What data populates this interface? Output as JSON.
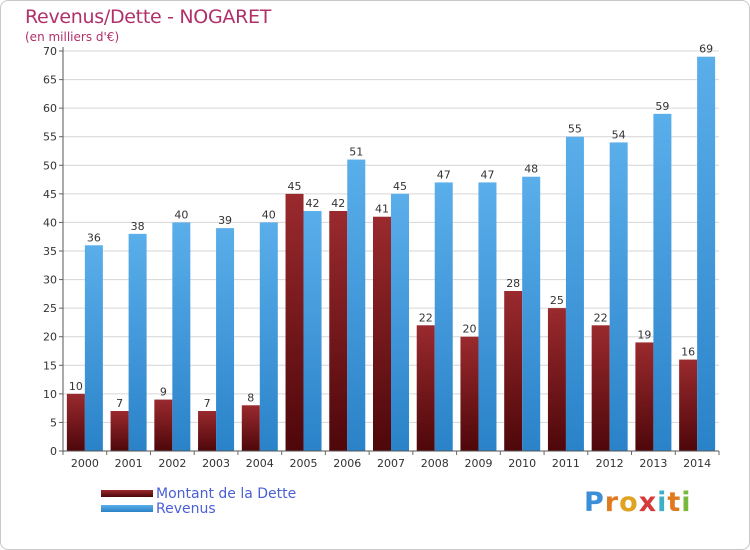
{
  "title": "Revenus/Dette - NOGARET",
  "subtitle": "(en milliers d'€)",
  "logo_text": "Proxiti",
  "colors": {
    "debt": "#7a1418",
    "revenue": "#3d9ae0",
    "title": "#b0306a",
    "legend_text": "#4a5fd6",
    "grid": "#d6d6d6"
  },
  "chart_data": {
    "type": "bar",
    "title": "Revenus/Dette - NOGARET",
    "subtitle": "(en milliers d'€)",
    "xlabel": "",
    "ylabel": "",
    "ylim": [
      0,
      70
    ],
    "ytick_step": 5,
    "grid": true,
    "legend_position": "bottom-left",
    "categories": [
      "2000",
      "2001",
      "2002",
      "2003",
      "2004",
      "2005",
      "2006",
      "2007",
      "2008",
      "2009",
      "2010",
      "2011",
      "2012",
      "2013",
      "2014"
    ],
    "series": [
      {
        "name": "Montant de la Dette",
        "color": "#7a1418",
        "values": [
          10,
          7,
          9,
          7,
          8,
          45,
          42,
          41,
          22,
          20,
          28,
          25,
          22,
          19,
          16
        ]
      },
      {
        "name": "Revenus",
        "color": "#3d9ae0",
        "values": [
          36,
          38,
          40,
          39,
          40,
          42,
          51,
          45,
          47,
          47,
          48,
          55,
          54,
          59,
          69
        ]
      }
    ]
  }
}
